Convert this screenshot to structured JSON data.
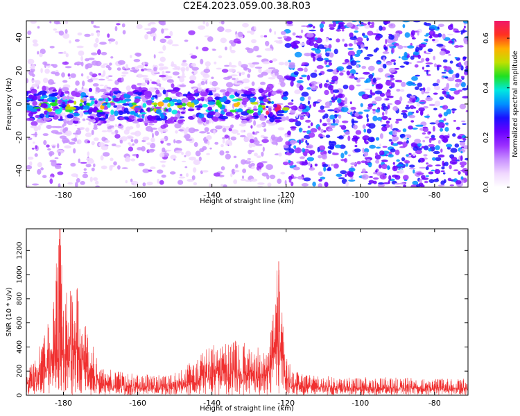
{
  "title": "C2E4.2023.059.00.38.R03",
  "colors": {
    "snr_line": "#f03030",
    "spectrogram_colormap": [
      "#ffffff",
      "#f0d8ff",
      "#c890ff",
      "#9b30ff",
      "#6a00ff",
      "#1a10ff",
      "#0090ff",
      "#00e8e0",
      "#20e020",
      "#c0e000",
      "#ffb000",
      "#ff3020",
      "#f0186a"
    ]
  },
  "chart_data": [
    {
      "type": "heatmap",
      "xlabel": "Height of straight line (km)",
      "ylabel": "Frequency (Hz)",
      "xlim": [
        -190,
        -71
      ],
      "ylim": [
        -50,
        50
      ],
      "xticks": [
        -180,
        -160,
        -140,
        -120,
        -100,
        -80
      ],
      "yticks": [
        -40,
        -20,
        0,
        20,
        40
      ],
      "colorbar": {
        "label": "Normalized spectral amplitude",
        "ticks": [
          0.0,
          0.2,
          0.4,
          0.6
        ],
        "ticklabels": [
          "0.0",
          "0.2",
          "0.4",
          "0.6"
        ],
        "range": [
          0.0,
          0.67
        ]
      },
      "signal_band": {
        "frequency_hz": [
          -10,
          10
        ],
        "height_km": [
          -190,
          -120
        ],
        "peak_amplitude": 0.65,
        "peak_height_km": -125
      },
      "background": {
        "height_km_below_-120_amplitude": 0.12,
        "height_km_above_-120_amplitude": 0.28
      }
    },
    {
      "type": "line",
      "xlabel": "Height of straight line (km)",
      "ylabel": "SNR (10 * v/v)",
      "xlim": [
        -190,
        -71
      ],
      "ylim": [
        0,
        1380
      ],
      "xticks": [
        -180,
        -160,
        -140,
        -120,
        -100,
        -80
      ],
      "yticks": [
        0,
        200,
        400,
        600,
        800,
        1000,
        1200
      ],
      "series": [
        {
          "x": [
            -190,
            -188,
            -186,
            -184,
            -182,
            -181,
            -180,
            -178,
            -176,
            -174,
            -172,
            -170,
            -165,
            -160,
            -155,
            -150,
            -145,
            -140,
            -135,
            -130,
            -125,
            -122,
            -120,
            -118,
            -115,
            -110,
            -100,
            -90,
            -80,
            -71
          ],
          "values": [
            180,
            260,
            380,
            560,
            950,
            1380,
            700,
            820,
            780,
            500,
            350,
            200,
            170,
            160,
            150,
            160,
            250,
            380,
            400,
            380,
            320,
            1110,
            280,
            180,
            150,
            140,
            130,
            130,
            120,
            120
          ]
        }
      ]
    }
  ]
}
